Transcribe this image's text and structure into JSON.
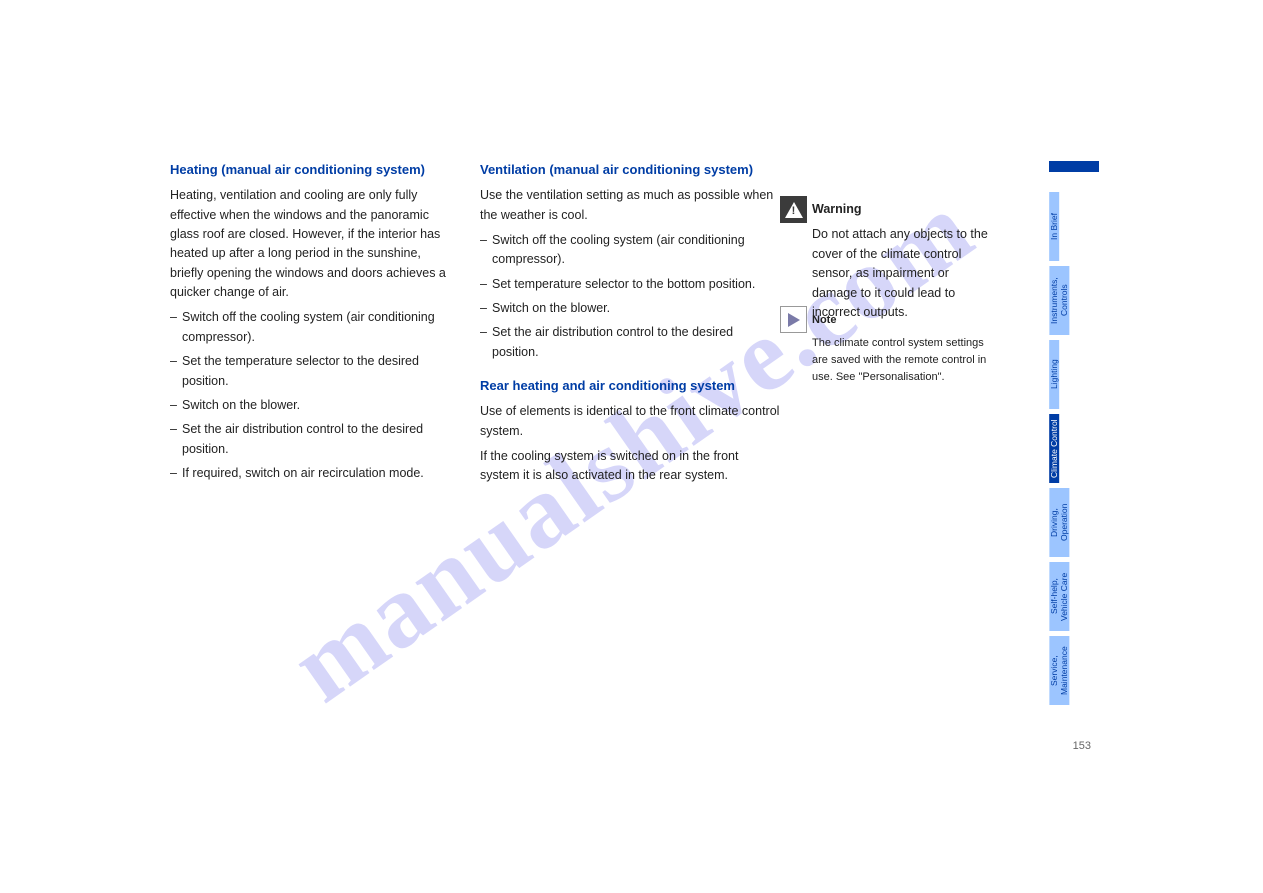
{
  "watermark": "manualshive.com",
  "pageNumber": "153",
  "left": {
    "heading": "Heating (manual air conditioning system)",
    "para1": "Heating, ventilation and cooling are only fully effective when the windows and the panoramic glass roof are closed. However, if the interior has heated up after a long period in the sunshine, briefly opening the windows and doors achieves a quicker change of air.",
    "bullets": [
      "Switch off the cooling system (air conditioning compressor).",
      "Set the temperature selector to the desired position.",
      "Switch on the blower.",
      "Set the air distribution control to the desired position.",
      "If required, switch on air recirculation mode."
    ]
  },
  "right": {
    "heading1": "Ventilation (manual air conditioning system)",
    "para1": "Use the ventilation setting as much as possible when the weather is cool.",
    "bullets1": [
      "Switch off the cooling system (air conditioning compressor).",
      "Set temperature selector to the bottom position.",
      "Switch on the blower.",
      "Set the air distribution control to the desired position."
    ],
    "heading2": "Rear heating and air conditioning system",
    "para2": "Use of elements is identical to the front climate control system.",
    "para3": "If the cooling system is switched on in the front system it is also activated in the rear system."
  },
  "far": {
    "label": "Warning",
    "warning": "Do not attach any objects to the cover of the climate control sensor, as impairment or damage to it could lead to incorrect outputs.",
    "label2": "Note",
    "note": "The climate control system settings are saved with the remote control in use. See \"Personalisation\"."
  },
  "tabs": [
    {
      "label": "In Brief",
      "active": false
    },
    {
      "label": "Instruments, Controls",
      "active": false
    },
    {
      "label": "Lighting",
      "active": false
    },
    {
      "label": "Climate Control",
      "active": true
    },
    {
      "label": "Driving, Operation",
      "active": false
    },
    {
      "label": "Self-help, Vehicle Care",
      "active": false
    },
    {
      "label": "Service, Maintenance",
      "active": false
    }
  ],
  "colors": {
    "tabBg": "#9cc5ff",
    "tabActive": "#003da5",
    "tabText": "#003da5",
    "textColor": "#222",
    "watermarkColor": "#8c8cf0"
  }
}
